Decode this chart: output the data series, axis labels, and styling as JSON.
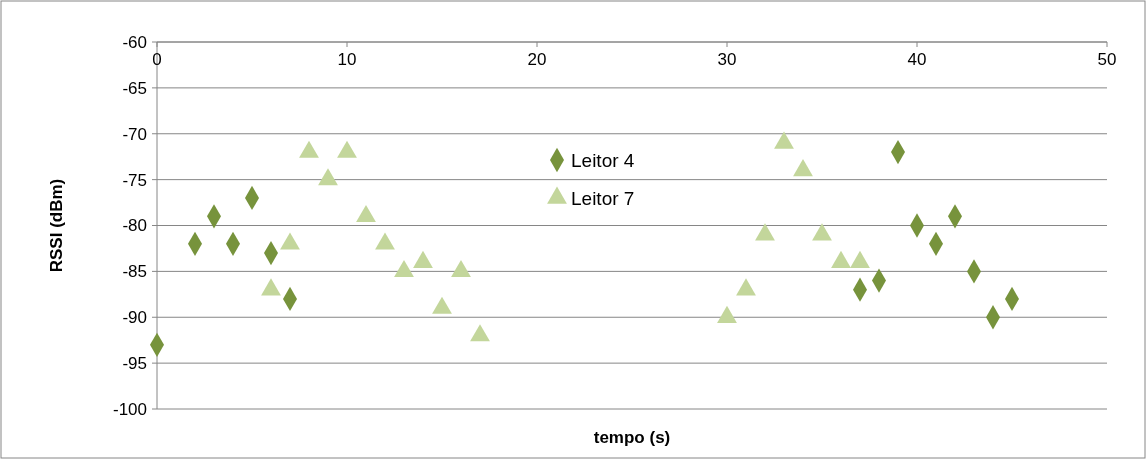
{
  "chart_data": {
    "type": "scatter",
    "xlabel": "tempo (s)",
    "ylabel": "RSSI (dBm)",
    "xlim": [
      0,
      50
    ],
    "xticks": [
      0,
      10,
      20,
      30,
      40,
      50
    ],
    "ylim": [
      -100,
      -60
    ],
    "yticks": [
      -100,
      -95,
      -90,
      -85,
      -80,
      -75,
      -70,
      -65,
      -60
    ],
    "grid": "y",
    "legend": "top",
    "series": [
      {
        "name": "Leitor 4",
        "color": "#77933c",
        "marker": "diamond",
        "x": [
          0,
          2,
          3,
          4,
          5,
          6,
          7,
          37,
          38,
          39,
          40,
          41,
          42,
          43,
          44,
          45
        ],
        "values": [
          -93,
          -82,
          -79,
          -82,
          -77,
          -83,
          -88,
          -87,
          -86,
          -72,
          -80,
          -82,
          -79,
          -85,
          -90,
          -88
        ]
      },
      {
        "name": "Leitor 7",
        "color": "#c3d69b",
        "marker": "triangle",
        "x": [
          6,
          7,
          8,
          9,
          10,
          11,
          12,
          13,
          14,
          15,
          16,
          17,
          30,
          31,
          32,
          33,
          34,
          35,
          36,
          37
        ],
        "values": [
          -87,
          -82,
          -72,
          -75,
          -72,
          -79,
          -82,
          -85,
          -84,
          -89,
          -85,
          -92,
          -90,
          -87,
          -81,
          -71,
          -74,
          -81,
          -84,
          -84
        ]
      }
    ]
  }
}
